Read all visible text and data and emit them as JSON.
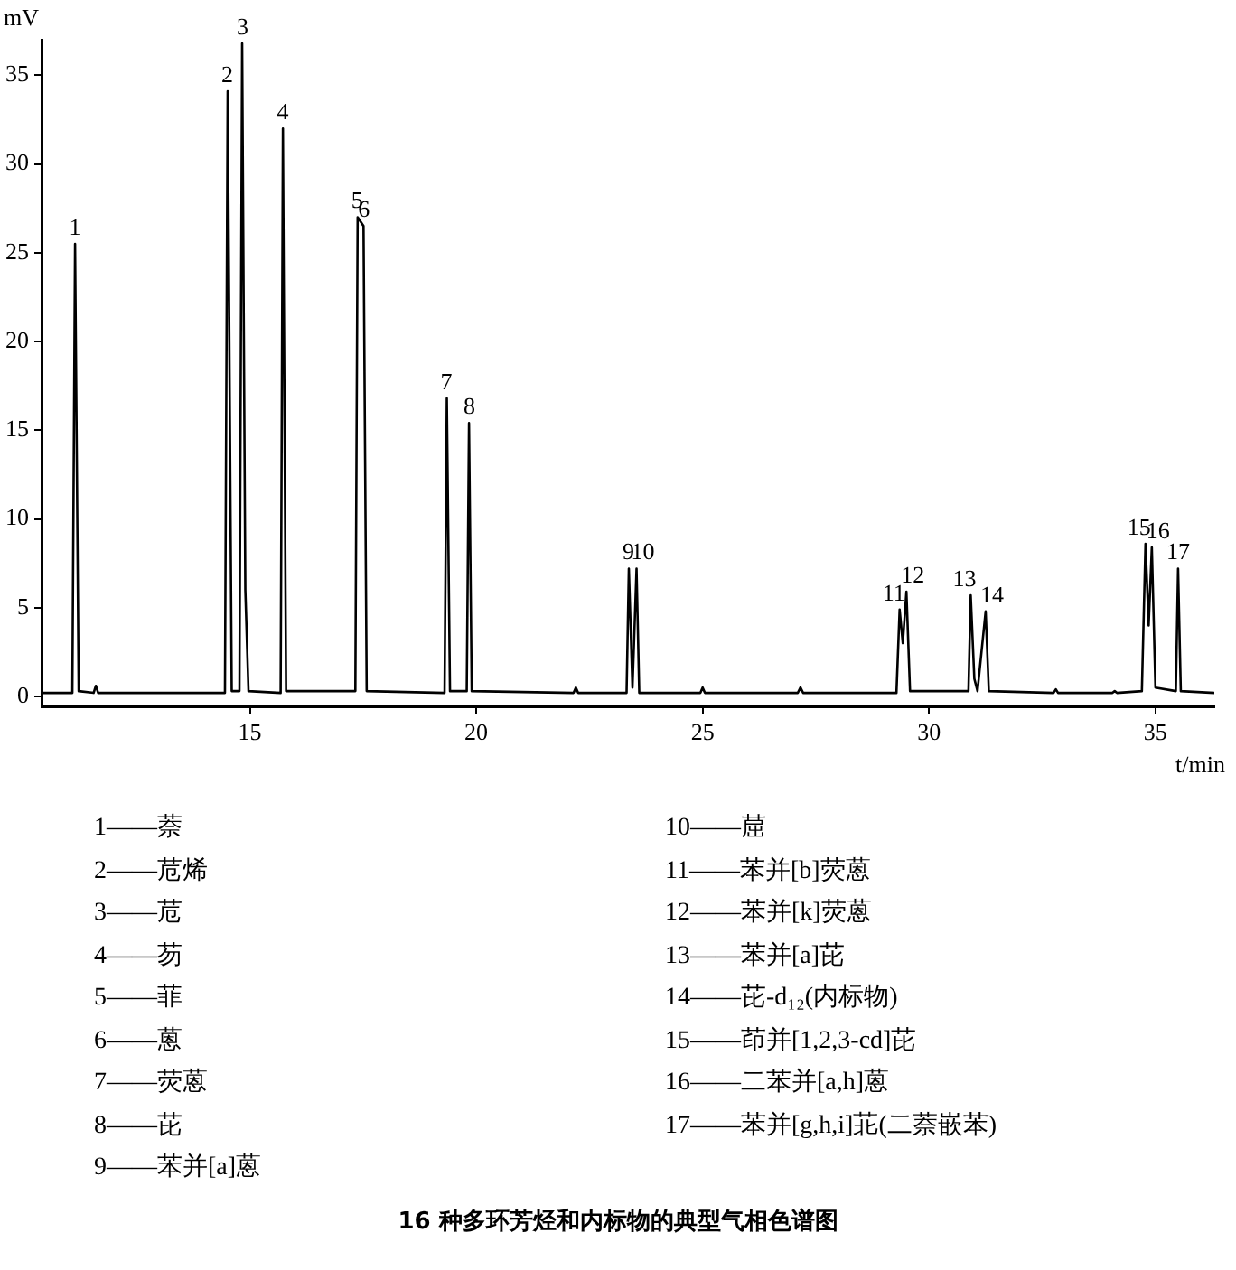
{
  "chart_data": {
    "type": "line",
    "title": "16 种多环芳烃和内标物的典型气相色谱图",
    "xlabel": "t/min",
    "ylabel": "mV",
    "xlim": [
      10.4,
      36.3
    ],
    "xticks": [
      15,
      20,
      25,
      30,
      35
    ],
    "ylim": [
      -0.6,
      37
    ],
    "yticks": [
      0,
      5,
      10,
      15,
      20,
      25,
      30,
      35
    ],
    "marker": "none",
    "legend": false,
    "series": [
      {
        "color": "#000000",
        "x": [
          10.4,
          11.08,
          11.14,
          11.22,
          11.55,
          11.6,
          11.65,
          14.45,
          14.51,
          14.6,
          14.77,
          14.83,
          14.9,
          14.97,
          15.68,
          15.73,
          15.8,
          17.33,
          17.38,
          17.51,
          17.58,
          19.3,
          19.35,
          19.42,
          19.79,
          19.84,
          19.9,
          22.15,
          22.2,
          22.25,
          23.32,
          23.37,
          23.45,
          23.54,
          23.6,
          24.95,
          25.0,
          25.05,
          27.1,
          27.16,
          27.22,
          29.28,
          29.35,
          29.42,
          29.5,
          29.58,
          30.87,
          30.92,
          31.0,
          31.07,
          31.25,
          31.32,
          32.75,
          32.8,
          32.85,
          34.05,
          34.1,
          34.15,
          34.7,
          34.78,
          34.85,
          34.92,
          35.0,
          35.45,
          35.5,
          35.56,
          36.3
        ],
        "values": [
          0.2,
          0.2,
          25.5,
          0.3,
          0.2,
          0.6,
          0.2,
          0.2,
          34.1,
          0.3,
          0.3,
          36.8,
          6.0,
          0.3,
          0.2,
          32.0,
          0.3,
          0.3,
          27.0,
          26.5,
          0.3,
          0.2,
          16.8,
          0.3,
          0.3,
          15.4,
          0.3,
          0.2,
          0.5,
          0.2,
          0.2,
          7.2,
          0.5,
          7.2,
          0.2,
          0.2,
          0.5,
          0.2,
          0.2,
          0.5,
          0.2,
          0.2,
          4.9,
          3.0,
          5.9,
          0.3,
          0.3,
          5.7,
          1.0,
          0.3,
          4.8,
          0.3,
          0.2,
          0.4,
          0.2,
          0.2,
          0.3,
          0.2,
          0.3,
          8.6,
          4.0,
          8.4,
          0.5,
          0.3,
          7.2,
          0.3,
          0.2
        ]
      }
    ],
    "annotations": [
      {
        "text": "1",
        "x": 11.14,
        "y": 25.5
      },
      {
        "text": "2",
        "x": 14.51,
        "y": 34.1
      },
      {
        "text": "3",
        "x": 14.83,
        "y": 36.8
      },
      {
        "text": "4",
        "x": 15.73,
        "y": 32.0
      },
      {
        "text": "5",
        "x": 17.38,
        "y": 27.0
      },
      {
        "text": "6",
        "x": 17.51,
        "y": 26.5
      },
      {
        "text": "7",
        "x": 19.35,
        "y": 16.8
      },
      {
        "text": "8",
        "x": 19.84,
        "y": 15.4
      },
      {
        "text": "9",
        "x": 23.37,
        "y": 7.2
      },
      {
        "text": "10",
        "x": 23.54,
        "y": 7.2
      },
      {
        "text": "11",
        "x": 29.35,
        "y": 4.9
      },
      {
        "text": "12",
        "x": 29.5,
        "y": 5.9
      },
      {
        "text": "13",
        "x": 30.92,
        "y": 5.7
      },
      {
        "text": "14",
        "x": 31.25,
        "y": 4.8
      },
      {
        "text": "15",
        "x": 34.78,
        "y": 8.6
      },
      {
        "text": "16",
        "x": 34.92,
        "y": 8.4
      },
      {
        "text": "17",
        "x": 35.5,
        "y": 7.2
      },
      "1——萘",
      "2——苊烯",
      "3——苊",
      "4——芴",
      "5——菲",
      "6——蒽",
      "7——荧蒽",
      "8——芘",
      "9——苯并[a]蒽",
      "10——䓛",
      "11——苯并[b]荧蒽",
      "12——苯并[k]荧蒽",
      "13——苯并[a]芘",
      "14——芘-d₁₂(内标物)",
      "15——茚并[1,2,3-cd]芘",
      "16——二苯并[a,h]蒽",
      "17——苯并[g,h,i]苝(二萘嵌苯)"
    ]
  }
}
